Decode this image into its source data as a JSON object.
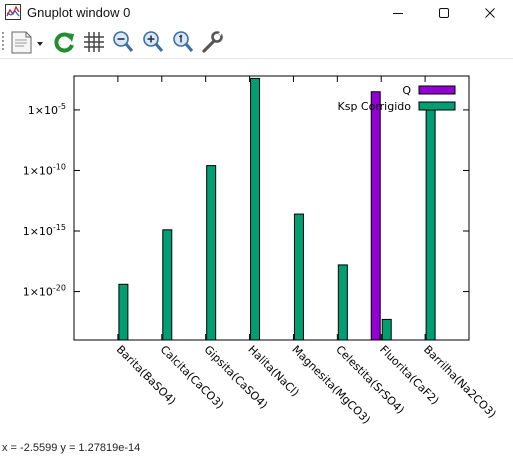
{
  "window": {
    "title": "Gnuplot window 0",
    "controls": {
      "minimize": "minimize",
      "maximize": "maximize",
      "close": "close"
    }
  },
  "toolbar": {
    "items": [
      {
        "name": "copy-print-icon"
      },
      {
        "name": "replot-icon"
      },
      {
        "name": "grid-icon"
      },
      {
        "name": "zoom-previous-icon"
      },
      {
        "name": "zoom-next-icon"
      },
      {
        "name": "autoscale-icon"
      },
      {
        "name": "options-wrench-icon"
      }
    ]
  },
  "status": {
    "text": "x = -2.5599 y = 1.27819e-14"
  },
  "chart_data": {
    "type": "bar",
    "scale_y": "log10",
    "ylim_exponent": [
      -24,
      -2.2
    ],
    "ytick_labels": [
      "1×10",
      "1×10",
      "1×10",
      "1×10"
    ],
    "ytick_exponents": [
      -20,
      -15,
      -10,
      -5
    ],
    "ytick_exponent_labels": [
      "-20",
      "-15",
      "-10",
      "-5"
    ],
    "categories": [
      "Barita(BaSO4)",
      "Calcita(CaCO3)",
      "Gipsita(CaSO4)",
      "Halita(NaCl)",
      "Magnesita(MgCO3)",
      "Celestita(SrSO4)",
      "Fluorita(CaF2)",
      "Barrilha(Na2CO3)"
    ],
    "series": [
      {
        "name": "Q",
        "color": "#9400d3",
        "log10_values": [
          null,
          null,
          null,
          null,
          null,
          null,
          -3.5,
          null
        ]
      },
      {
        "name": "Ksp Corrigido",
        "color": "#009e73",
        "log10_values": [
          -19.4,
          -14.9,
          -9.6,
          -2.4,
          -13.6,
          -17.8,
          -22.3,
          -4.4
        ]
      }
    ],
    "legend": "top-right"
  }
}
